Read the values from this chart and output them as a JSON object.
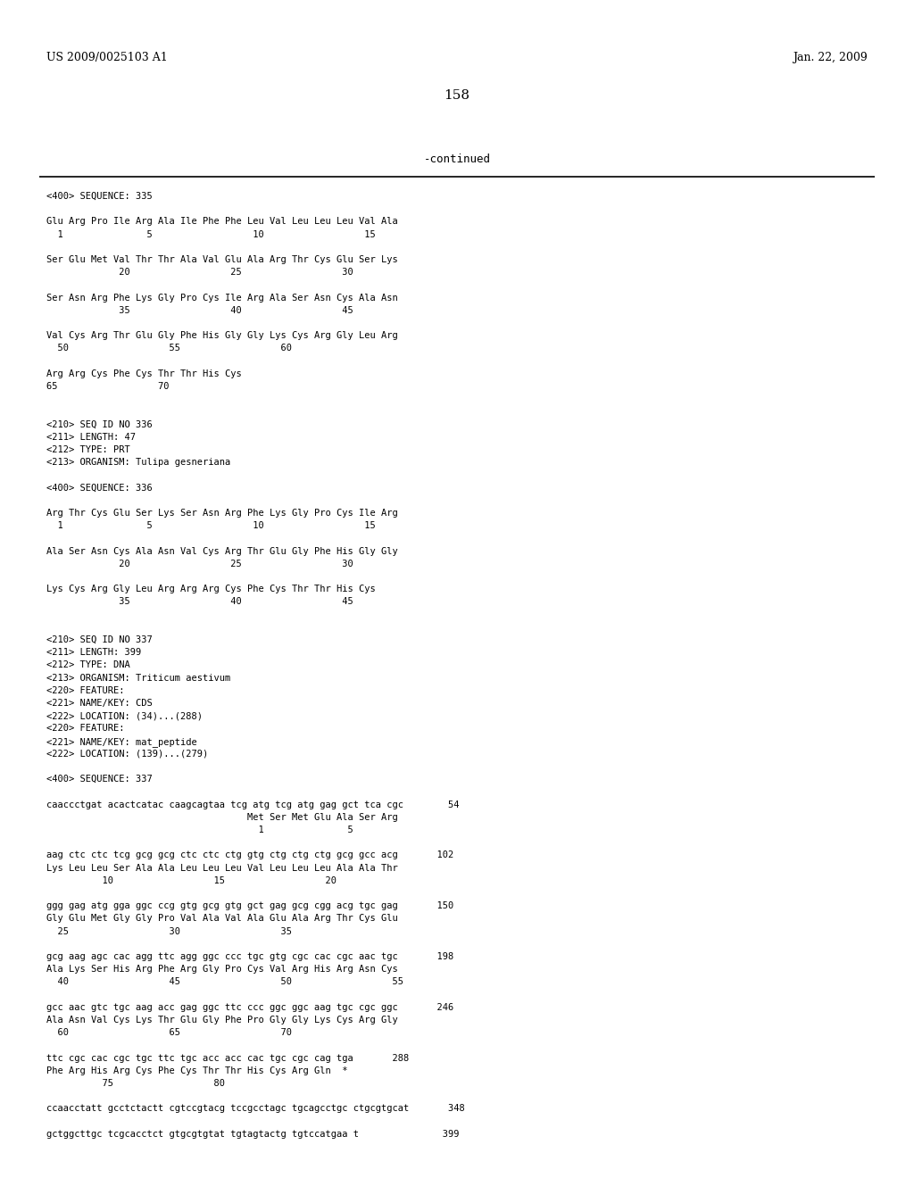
{
  "header_left": "US 2009/0025103 A1",
  "header_right": "Jan. 22, 2009",
  "page_number": "158",
  "continued_text": "-continued",
  "background_color": "#ffffff",
  "text_color": "#000000",
  "content": [
    "<400> SEQUENCE: 335",
    "",
    "Glu Arg Pro Ile Arg Ala Ile Phe Phe Leu Val Leu Leu Leu Val Ala",
    "  1               5                  10                  15",
    "",
    "Ser Glu Met Val Thr Thr Ala Val Glu Ala Arg Thr Cys Glu Ser Lys",
    "             20                  25                  30",
    "",
    "Ser Asn Arg Phe Lys Gly Pro Cys Ile Arg Ala Ser Asn Cys Ala Asn",
    "             35                  40                  45",
    "",
    "Val Cys Arg Thr Glu Gly Phe His Gly Gly Lys Cys Arg Gly Leu Arg",
    "  50                  55                  60",
    "",
    "Arg Arg Cys Phe Cys Thr Thr His Cys",
    "65                  70",
    "",
    "",
    "<210> SEQ ID NO 336",
    "<211> LENGTH: 47",
    "<212> TYPE: PRT",
    "<213> ORGANISM: Tulipa gesneriana",
    "",
    "<400> SEQUENCE: 336",
    "",
    "Arg Thr Cys Glu Ser Lys Ser Asn Arg Phe Lys Gly Pro Cys Ile Arg",
    "  1               5                  10                  15",
    "",
    "Ala Ser Asn Cys Ala Asn Val Cys Arg Thr Glu Gly Phe His Gly Gly",
    "             20                  25                  30",
    "",
    "Lys Cys Arg Gly Leu Arg Arg Arg Cys Phe Cys Thr Thr His Cys",
    "             35                  40                  45",
    "",
    "",
    "<210> SEQ ID NO 337",
    "<211> LENGTH: 399",
    "<212> TYPE: DNA",
    "<213> ORGANISM: Triticum aestivum",
    "<220> FEATURE:",
    "<221> NAME/KEY: CDS",
    "<222> LOCATION: (34)...(288)",
    "<220> FEATURE:",
    "<221> NAME/KEY: mat_peptide",
    "<222> LOCATION: (139)...(279)",
    "",
    "<400> SEQUENCE: 337",
    "",
    "caaccctgat acactcatac caagcagtaa tcg atg tcg atg gag gct tca cgc        54",
    "                                    Met Ser Met Glu Ala Ser Arg",
    "                                      1               5",
    "",
    "aag ctc ctc tcg gcg gcg ctc ctc ctg gtg ctg ctg ctg gcg gcc acg       102",
    "Lys Leu Leu Ser Ala Ala Leu Leu Leu Val Leu Leu Leu Ala Ala Thr",
    "          10                  15                  20",
    "",
    "ggg gag atg gga ggc ccg gtg gcg gtg gct gag gcg cgg acg tgc gag       150",
    "Gly Glu Met Gly Gly Pro Val Ala Val Ala Glu Ala Arg Thr Cys Glu",
    "  25                  30                  35",
    "",
    "gcg aag agc cac agg ttc agg ggc ccc tgc gtg cgc cac cgc aac tgc       198",
    "Ala Lys Ser His Arg Phe Arg Gly Pro Cys Val Arg His Arg Asn Cys",
    "  40                  45                  50                  55",
    "",
    "gcc aac gtc tgc aag acc gag ggc ttc ccc ggc ggc aag tgc cgc ggc       246",
    "Ala Asn Val Cys Lys Thr Glu Gly Phe Pro Gly Gly Lys Cys Arg Gly",
    "  60                  65                  70",
    "",
    "ttc cgc cac cgc tgc ttc tgc acc acc cac tgc cgc cag tga       288",
    "Phe Arg His Arg Cys Phe Cys Thr Thr His Cys Arg Gln  *",
    "          75                  80",
    "",
    "ccaacctatt gcctctactt cgtccgtacg tccgcctagc tgcagcctgc ctgcgtgcat       348",
    "",
    "gctggcttgc tcgcacctct gtgcgtgtat tgtagtactg tgtccatgaa t               399"
  ]
}
